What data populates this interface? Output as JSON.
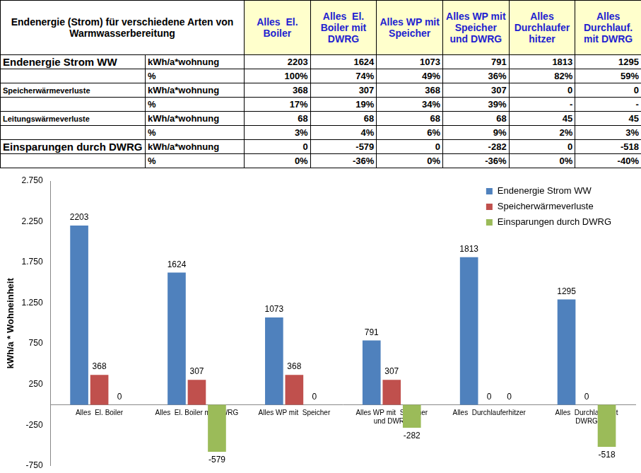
{
  "table": {
    "title": "Endenergie (Strom) für verschiedene Arten von Warmwasserbereitung",
    "columns": [
      "Alles  El. Boiler",
      "Alles  El. Boiler mit DWRG",
      "Alles WP mit Speicher",
      "Alles WP mit Speicher und DWRG",
      "Alles Durchlaufer hitzer",
      "Alles Durchlauf. mit DWRG"
    ],
    "rows": [
      [
        "Endenergie Strom WW",
        "kWh/a*wohnung",
        "2203",
        "1624",
        "1073",
        "791",
        "1813",
        "1295"
      ],
      [
        null,
        "%",
        "100%",
        "74%",
        "49%",
        "36%",
        "82%",
        "59%"
      ],
      [
        "Speicherwärmeverluste",
        "kWh/a*wohnung",
        "368",
        "307",
        "368",
        "307",
        "0",
        "0"
      ],
      [
        null,
        "%",
        "17%",
        "19%",
        "34%",
        "39%",
        "-",
        "-"
      ],
      [
        "Leitungswärmeverluste",
        "kWh/a*wohnung",
        "68",
        "68",
        "68",
        "68",
        "45",
        "45"
      ],
      [
        null,
        "%",
        "3%",
        "4%",
        "6%",
        "9%",
        "2%",
        "3%"
      ],
      [
        "Einsparungen durch DWRG",
        "kWh/a*wohnung",
        "0",
        "-579",
        "0",
        "-282",
        "0",
        "-518"
      ],
      [
        null,
        "%",
        "0%",
        "-36%",
        "0%",
        "-36%",
        "0%",
        "-40%"
      ]
    ]
  },
  "chart_data": {
    "type": "bar",
    "y_label": "kWh/a * Wohneinheit",
    "categories": [
      "Alles  El. Boiler",
      "Alles  El. Boiler mit DWRG",
      "Alles WP mit  Speicher",
      [
        "Alles WP mit  Speicher",
        "und DWRG"
      ],
      "Alles  Durchlauferhitzer",
      [
        "Alles  Durchlauf. mit",
        "DWRG"
      ]
    ],
    "series": [
      {
        "name": "Endenergie Strom WW",
        "color": "#4f81bd",
        "values": [
          2203,
          1624,
          1073,
          791,
          1813,
          1295
        ]
      },
      {
        "name": "Speicherwärmeverluste",
        "color": "#c0504d",
        "values": [
          368,
          307,
          368,
          307,
          0,
          0
        ]
      },
      {
        "name": "Einsparungen durch DWRG",
        "color": "#9bbb59",
        "values": [
          0,
          -579,
          0,
          -282,
          0,
          -518
        ]
      }
    ],
    "ylim": [
      -750,
      2750
    ],
    "yticks": [
      -750,
      -250,
      250,
      750,
      {
        "value": 1250,
        "label": "1.250"
      },
      {
        "value": 1750,
        "label": "1.750"
      },
      {
        "value": 2250,
        "label": "2.250"
      },
      {
        "value": 2750,
        "label": "2.750"
      }
    ],
    "grid": false,
    "legend": "top-right",
    "data_labels": true
  }
}
